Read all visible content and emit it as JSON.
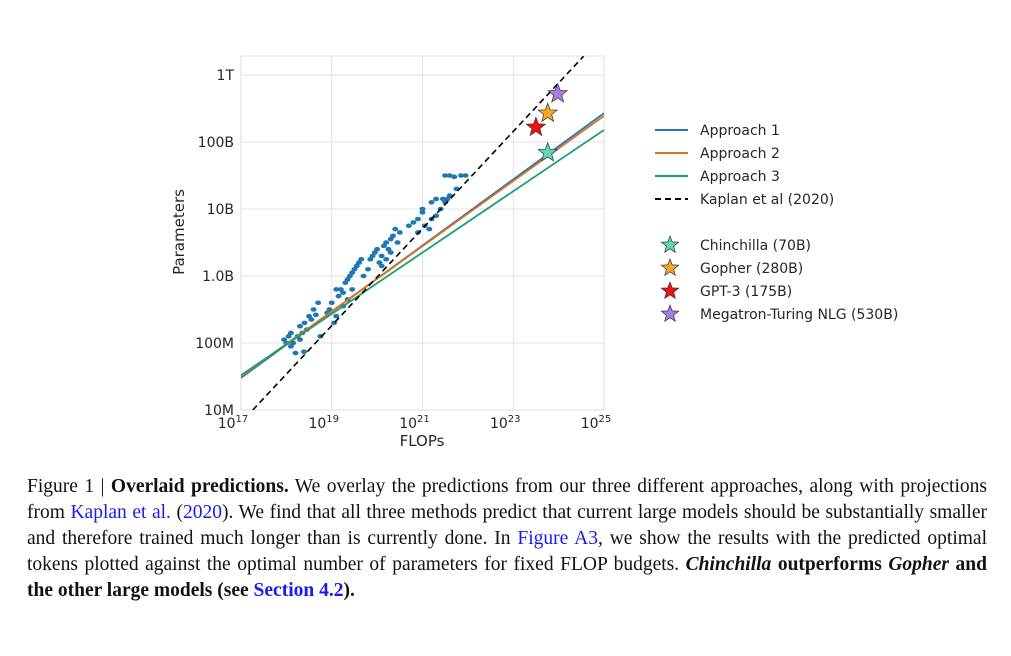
{
  "chart_data": {
    "type": "scatter",
    "xlabel": "FLOPs",
    "ylabel": "Parameters",
    "xscale": "log",
    "yscale": "log",
    "xlim_log10": [
      17,
      25
    ],
    "ylim_log10": [
      7,
      12.3
    ],
    "grid": true,
    "x_ticks": [
      {
        "base": "10",
        "exp": "17",
        "log10": 17
      },
      {
        "base": "10",
        "exp": "19",
        "log10": 19
      },
      {
        "base": "10",
        "exp": "21",
        "log10": 21
      },
      {
        "base": "10",
        "exp": "23",
        "log10": 23
      },
      {
        "base": "10",
        "exp": "25",
        "log10": 25
      }
    ],
    "y_ticks": [
      {
        "label": "10M",
        "log10": 7
      },
      {
        "label": "100M",
        "log10": 8
      },
      {
        "label": "1.0B",
        "log10": 9
      },
      {
        "label": "10B",
        "log10": 10
      },
      {
        "label": "100B",
        "log10": 11
      },
      {
        "label": "1T",
        "log10": 12
      }
    ],
    "legend_position": "right",
    "lines": [
      {
        "name": "Approach 1",
        "color": "#1f77b4",
        "dashed": false,
        "points_log10": [
          [
            17,
            7.48
          ],
          [
            25,
            11.43
          ]
        ]
      },
      {
        "name": "Approach 2",
        "color": "#e0701e",
        "dashed": false,
        "points_log10": [
          [
            17,
            7.5
          ],
          [
            25,
            11.39
          ]
        ]
      },
      {
        "name": "Approach 3",
        "color": "#1a9e77",
        "dashed": false,
        "points_log10": [
          [
            17,
            7.52
          ],
          [
            25,
            11.18
          ]
        ]
      },
      {
        "name": "Kaplan et al (2020)",
        "color": "#000000",
        "dashed": true,
        "points_log10": [
          [
            17.26,
            7.0
          ],
          [
            24.55,
            12.28
          ]
        ]
      }
    ],
    "models": [
      {
        "name": "Chinchilla (70B)",
        "color": "#5fd6b4",
        "x_log10": 23.76,
        "y_log10": 10.84
      },
      {
        "name": "Gopher (280B)",
        "color": "#f5a623",
        "x_log10": 23.76,
        "y_log10": 11.43
      },
      {
        "name": "GPT-3 (175B)",
        "color": "#ee1111",
        "x_log10": 23.5,
        "y_log10": 11.22
      },
      {
        "name": "Megatron-Turing NLG (530B)",
        "color": "#a87de8",
        "x_log10": 23.98,
        "y_log10": 11.72
      }
    ],
    "scatter": {
      "color": "#1f77b4",
      "points_log10": [
        [
          17.95,
          8.05
        ],
        [
          18.0,
          8.0
        ],
        [
          18.05,
          8.1
        ],
        [
          18.1,
          7.95
        ],
        [
          18.1,
          8.15
        ],
        [
          18.15,
          8.0
        ],
        [
          18.2,
          7.85
        ],
        [
          18.25,
          8.1
        ],
        [
          18.3,
          8.25
        ],
        [
          18.3,
          8.05
        ],
        [
          18.35,
          8.15
        ],
        [
          18.4,
          8.3
        ],
        [
          18.45,
          8.2
        ],
        [
          18.5,
          8.4
        ],
        [
          18.55,
          8.35
        ],
        [
          18.6,
          8.5
        ],
        [
          18.65,
          8.42
        ],
        [
          18.7,
          8.6
        ],
        [
          18.39,
          7.87
        ],
        [
          18.75,
          8.1
        ],
        [
          18.9,
          8.45
        ],
        [
          18.95,
          8.5
        ],
        [
          19.0,
          8.6
        ],
        [
          19.05,
          8.3
        ],
        [
          19.1,
          8.4
        ],
        [
          19.15,
          8.7
        ],
        [
          19.2,
          8.8
        ],
        [
          19.25,
          8.55
        ],
        [
          19.3,
          8.9
        ],
        [
          19.35,
          8.95
        ],
        [
          19.4,
          9.0
        ],
        [
          19.45,
          9.05
        ],
        [
          19.5,
          9.1
        ],
        [
          19.55,
          9.15
        ],
        [
          19.6,
          9.2
        ],
        [
          19.65,
          9.25
        ],
        [
          19.7,
          9.0
        ],
        [
          19.1,
          8.8
        ],
        [
          19.25,
          8.75
        ],
        [
          19.35,
          8.65
        ],
        [
          19.45,
          8.8
        ],
        [
          19.8,
          9.1
        ],
        [
          19.85,
          9.25
        ],
        [
          19.9,
          9.3
        ],
        [
          19.95,
          9.35
        ],
        [
          20.0,
          9.4
        ],
        [
          20.05,
          9.2
        ],
        [
          20.1,
          9.3
        ],
        [
          20.15,
          9.45
        ],
        [
          20.2,
          9.5
        ],
        [
          20.25,
          9.4
        ],
        [
          20.3,
          9.55
        ],
        [
          20.35,
          9.6
        ],
        [
          20.4,
          9.7
        ],
        [
          20.1,
          9.15
        ],
        [
          20.2,
          9.25
        ],
        [
          20.3,
          9.35
        ],
        [
          20.45,
          9.5
        ],
        [
          20.5,
          9.65
        ],
        [
          20.7,
          9.75
        ],
        [
          20.8,
          9.8
        ],
        [
          20.9,
          9.85
        ],
        [
          21.0,
          9.95
        ],
        [
          20.9,
          9.65
        ],
        [
          21.05,
          9.75
        ],
        [
          21.15,
          9.7
        ],
        [
          21.2,
          9.85
        ],
        [
          21.3,
          9.9
        ],
        [
          21.4,
          10.0
        ],
        [
          21.5,
          10.1
        ],
        [
          21.45,
          10.15
        ],
        [
          21.2,
          10.1
        ],
        [
          21.3,
          10.15
        ],
        [
          21.0,
          10.0
        ],
        [
          21.5,
          10.5
        ],
        [
          21.6,
          10.5
        ],
        [
          21.7,
          10.48
        ],
        [
          21.85,
          10.5
        ],
        [
          21.95,
          10.5
        ],
        [
          21.75,
          10.3
        ],
        [
          21.6,
          10.2
        ],
        [
          21.55,
          10.15
        ]
      ]
    }
  },
  "caption": {
    "figure_label": "Figure 1 | ",
    "title": "Overlaid predictions.",
    "text1": " We overlay the predictions from our three different approaches, along with projections from ",
    "link_kaplan": "Kaplan et al.",
    "text2": " (",
    "link_year": "2020",
    "text3": "). We find that all three methods predict that current large models should be substantially smaller and therefore trained much longer than is currently done. In ",
    "link_figure": "Figure A3",
    "text4": ", we show the results with the predicted optimal tokens plotted against the optimal number of parameters for fixed FLOP budgets. ",
    "chinchilla": "Chinchilla",
    "text5": " outperforms ",
    "gopher": "Gopher",
    "text6": " and the other large models (see ",
    "link_section": "Section 4.2",
    "text7": ")."
  }
}
